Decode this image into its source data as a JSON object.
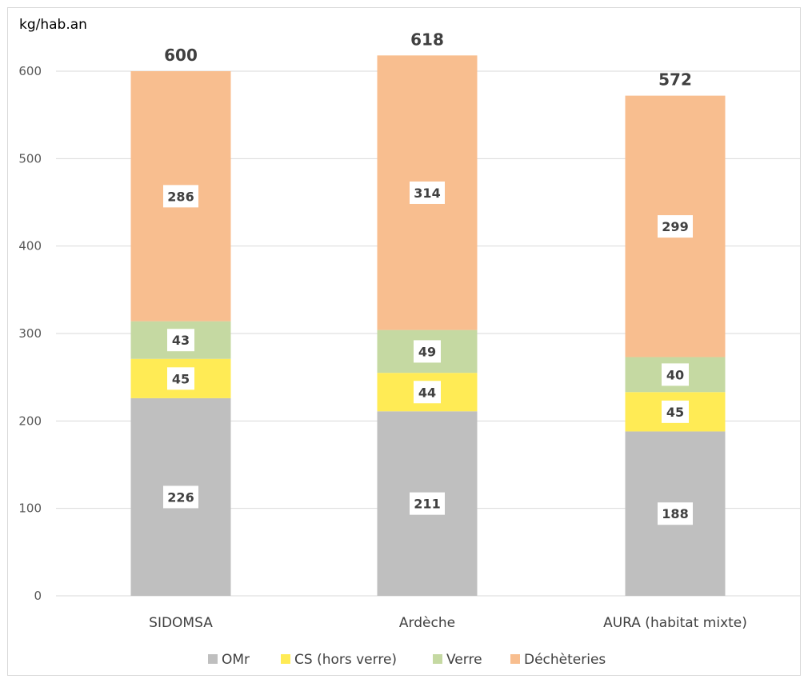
{
  "chart_data": {
    "type": "bar",
    "stacked": true,
    "ylabel": "kg/hab.an",
    "ylim": [
      0,
      600
    ],
    "yticks": [
      0,
      100,
      200,
      300,
      400,
      500,
      600
    ],
    "grid": true,
    "legend_position": "bottom",
    "categories": [
      "SIDOMSA",
      "Ardèche",
      "AURA (habitat mixte)"
    ],
    "totals": [
      600,
      618,
      572
    ],
    "series": [
      {
        "name": "OMr",
        "color": "#bfbfbf",
        "values": [
          226,
          211,
          188
        ]
      },
      {
        "name": "CS (hors verre)",
        "color": "#ffeb55",
        "values": [
          45,
          44,
          45
        ]
      },
      {
        "name": "Verre",
        "color": "#c5d9a2",
        "values": [
          43,
          49,
          40
        ]
      },
      {
        "name": "Déchèteries",
        "color": "#f8be8f",
        "values": [
          286,
          314,
          299
        ]
      }
    ]
  }
}
